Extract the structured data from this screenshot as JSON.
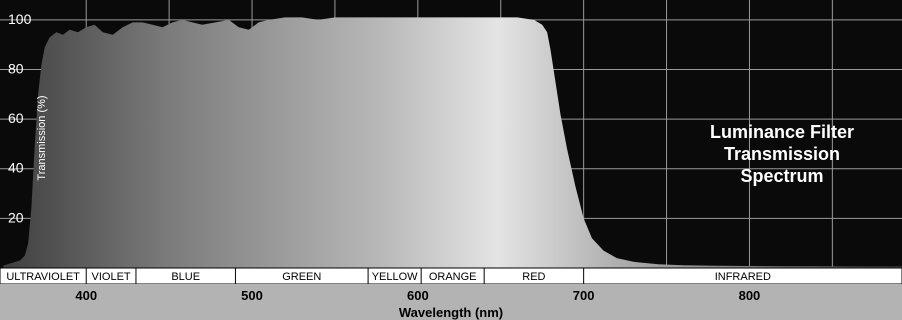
{
  "chart_data": {
    "type": "area",
    "title_lines": [
      "Luminance Filter",
      "Transmission",
      "Spectrum"
    ],
    "xlabel": "Wavelength (nm)",
    "ylabel": "Transmission (%)",
    "xlim": [
      348,
      892
    ],
    "ylim": [
      0,
      108
    ],
    "x_ticks": [
      400,
      500,
      600,
      700,
      800
    ],
    "y_ticks": [
      20,
      40,
      60,
      80,
      100
    ],
    "grid": true,
    "bands": [
      {
        "label": "ULTRAVIOLET",
        "start": 348,
        "end": 400
      },
      {
        "label": "VIOLET",
        "start": 400,
        "end": 430
      },
      {
        "label": "BLUE",
        "start": 430,
        "end": 490
      },
      {
        "label": "GREEN",
        "start": 490,
        "end": 570
      },
      {
        "label": "YELLOW",
        "start": 570,
        "end": 602
      },
      {
        "label": "ORANGE",
        "start": 602,
        "end": 640
      },
      {
        "label": "RED",
        "start": 640,
        "end": 700
      },
      {
        "label": "INFRARED",
        "start": 700,
        "end": 892
      }
    ],
    "series": [
      {
        "x": [
          350,
          355,
          360,
          363,
          365,
          367,
          369,
          371,
          373,
          375,
          378,
          382,
          386,
          390,
          395,
          400,
          405,
          410,
          416,
          422,
          428,
          434,
          440,
          446,
          452,
          458,
          464,
          470,
          478,
          486,
          492,
          498,
          504,
          510,
          520,
          530,
          540,
          550,
          560,
          570,
          580,
          590,
          600,
          610,
          620,
          630,
          640,
          650,
          660,
          670,
          675,
          678,
          680,
          683,
          686,
          690,
          695,
          700,
          705,
          712,
          720,
          730,
          745,
          760,
          780,
          800,
          820,
          840,
          860,
          880,
          892
        ],
        "y": [
          1,
          2,
          3,
          5,
          10,
          25,
          50,
          70,
          82,
          89,
          93,
          95,
          94,
          96,
          95,
          97,
          98,
          95,
          94,
          97,
          99,
          99,
          98,
          97,
          99,
          100,
          99,
          98,
          99,
          100,
          97,
          96,
          99,
          100,
          101,
          101,
          100,
          101,
          101,
          101,
          101,
          101,
          101,
          101,
          101,
          101,
          101,
          101,
          101,
          100,
          98,
          95,
          88,
          75,
          62,
          48,
          33,
          20,
          12,
          7,
          4,
          2.5,
          1.5,
          1.1,
          0.9,
          0.8,
          0.7,
          0.7,
          0.6,
          0.6,
          0.6
        ]
      }
    ]
  }
}
